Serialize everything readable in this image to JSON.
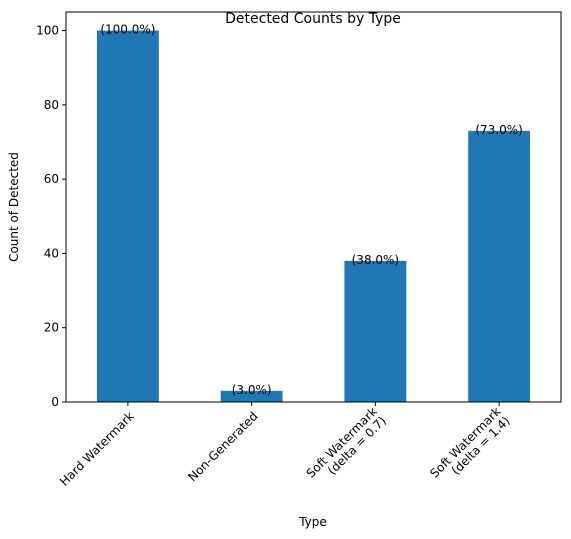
{
  "chart_data": {
    "type": "bar",
    "title": "Detected Counts by Type",
    "xlabel": "Type",
    "ylabel": "Count of Detected",
    "categories": [
      [
        "Hard Watermark"
      ],
      [
        "Non-Generated"
      ],
      [
        "Soft Watermark",
        "(delta = 0.7)"
      ],
      [
        "Soft Watermark",
        "(delta = 1.4)"
      ]
    ],
    "values": [
      100,
      3,
      38,
      73
    ],
    "bar_labels": [
      "(100.0%)",
      "(3.0%)",
      "(38.0%)",
      "(73.0%)"
    ],
    "ylim": [
      0,
      105
    ],
    "yticks": [
      0,
      20,
      40,
      60,
      80,
      100
    ],
    "bar_color": "#1f77b4",
    "grid": false,
    "legend": "none"
  }
}
